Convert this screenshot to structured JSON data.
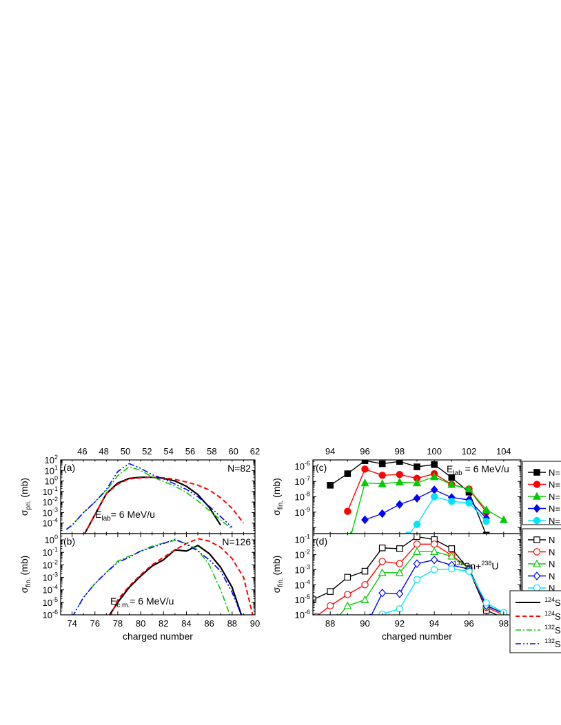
{
  "chart_data": [
    {
      "id": "a",
      "type": "line",
      "scale": "log",
      "panel_label": "(a)",
      "corner_label": "N=82",
      "energy_label": {
        "base": "E",
        "sub": "lab",
        "rest": "= 6 MeV/u"
      },
      "ylabel": {
        "base": "σ",
        "sub": "pri.",
        "rest": " (mb)"
      },
      "xlim": [
        73,
        90
      ],
      "ylim_exp": [
        -5,
        2
      ],
      "y_ticks_exp": [
        -4,
        -3,
        -2,
        -1,
        0,
        1,
        2
      ],
      "top_axis": {
        "xlim": [
          44,
          62
        ],
        "ticks": [
          46,
          48,
          50,
          52,
          54,
          56,
          58,
          60,
          62
        ]
      },
      "series": [
        {
          "color": "#000000",
          "dash": "",
          "width": 2.2,
          "x": [
            75,
            76,
            77,
            78,
            79,
            80,
            81,
            82,
            83,
            84,
            85,
            86,
            87
          ],
          "y_exp": [
            -5.2,
            -3.2,
            -1.2,
            -0.2,
            0.25,
            0.35,
            0.35,
            0.25,
            0.0,
            -0.5,
            -1.3,
            -2.5,
            -4.2
          ]
        },
        {
          "color": "#ff0000",
          "dash": "7,4",
          "width": 2,
          "x": [
            75,
            76,
            77,
            78,
            79,
            80,
            81,
            82,
            83,
            84,
            85,
            86,
            87,
            88,
            89
          ],
          "y_exp": [
            -5.2,
            -3.2,
            -1.2,
            -0.3,
            0.2,
            0.3,
            0.35,
            0.3,
            0.15,
            -0.1,
            -0.4,
            -0.85,
            -1.6,
            -2.6,
            -4.0
          ]
        },
        {
          "color": "#00cc00",
          "dash": "9,3,2,3",
          "width": 1.6,
          "x": [
            73.5,
            74,
            75,
            76,
            77,
            78,
            79,
            80,
            81,
            82,
            83,
            84,
            85,
            86,
            87,
            88
          ],
          "y_exp": [
            -4.6,
            -4.2,
            -3.0,
            -2.0,
            -0.9,
            0.5,
            1.35,
            1.0,
            0.4,
            -0.05,
            -0.5,
            -1.1,
            -1.9,
            -2.8,
            -3.7,
            -4.6
          ]
        },
        {
          "color": "#0000ff",
          "dash": "9,3,2,3,2,3",
          "width": 1.6,
          "x": [
            73.5,
            74,
            75,
            76,
            77,
            78,
            79,
            80,
            81,
            82,
            83,
            84,
            85,
            86,
            87,
            88
          ],
          "y_exp": [
            -4.6,
            -4.2,
            -3.0,
            -2.0,
            -0.8,
            0.9,
            1.65,
            1.2,
            0.6,
            0.2,
            -0.3,
            -0.8,
            -1.5,
            -2.4,
            -3.4,
            -4.4
          ]
        }
      ]
    },
    {
      "id": "b",
      "type": "line",
      "scale": "log",
      "panel_label": "(b)",
      "corner_label": "N=126",
      "energy_label": {
        "base": "E",
        "sub": "c.m.",
        "rest": "= 6 MeV/u"
      },
      "ylabel": {
        "base": "σ",
        "sub": "fin.",
        "rest": " (mb)"
      },
      "xlim": [
        73,
        90
      ],
      "ylim_exp": [
        -6,
        0.5
      ],
      "y_ticks_exp": [
        -6,
        -5,
        -4,
        -3,
        -2,
        -1,
        0
      ],
      "x_ticks": [
        74,
        76,
        78,
        80,
        82,
        84,
        86,
        88,
        90
      ],
      "xlabel": "charged number",
      "series": [
        {
          "color": "#000000",
          "dash": "",
          "width": 2.2,
          "x": [
            77,
            78,
            79,
            80,
            81,
            82,
            83,
            84,
            85,
            86,
            87,
            88,
            88.8
          ],
          "y_exp": [
            -6.4,
            -5.0,
            -3.8,
            -2.9,
            -2.1,
            -1.6,
            -0.8,
            -0.9,
            -0.45,
            -1.1,
            -2.2,
            -3.8,
            -6.0
          ]
        },
        {
          "color": "#ff0000",
          "dash": "7,4",
          "width": 2,
          "x": [
            77.3,
            78,
            79,
            80,
            81,
            82,
            83,
            84,
            85,
            86,
            87,
            88,
            89,
            89.8
          ],
          "y_exp": [
            -6.2,
            -4.8,
            -3.7,
            -2.8,
            -2.0,
            -1.4,
            -0.8,
            -0.3,
            0.1,
            -0.1,
            -0.6,
            -1.5,
            -3.0,
            -6.0
          ]
        },
        {
          "color": "#00cc00",
          "dash": "9,3,2,3",
          "width": 1.6,
          "x": [
            74,
            75,
            76,
            77,
            78,
            79,
            80,
            81,
            82,
            83,
            84,
            85,
            86,
            87,
            87.8
          ],
          "y_exp": [
            -6.2,
            -4.6,
            -3.5,
            -2.6,
            -1.7,
            -1.3,
            -0.9,
            -0.5,
            -0.25,
            -0.05,
            -0.3,
            -0.8,
            -2.0,
            -4.0,
            -6.0
          ]
        },
        {
          "color": "#0000ff",
          "dash": "9,3,2,3,2,3",
          "width": 1.6,
          "x": [
            74,
            75,
            76,
            77,
            78,
            79,
            80,
            81,
            82,
            83,
            84,
            85,
            86,
            87,
            88,
            88.8
          ],
          "y_exp": [
            -6.2,
            -4.6,
            -3.5,
            -2.6,
            -1.8,
            -1.4,
            -0.9,
            -0.6,
            -0.3,
            0.05,
            -0.35,
            -0.9,
            -1.6,
            -2.5,
            -4.2,
            -6.0
          ]
        }
      ]
    },
    {
      "id": "c",
      "type": "line",
      "scale": "log",
      "panel_label": "(c)",
      "energy_label": {
        "base": "E",
        "sub": "lab",
        "rest": " = 6 MeV/u"
      },
      "ylabel": {
        "base": "σ",
        "sub": "fin.",
        "rest": " (mb)"
      },
      "xlim": [
        87,
        99
      ],
      "ylim_exp": [
        -10.4,
        -5.6
      ],
      "y_ticks_exp": [
        -9,
        -8,
        -7,
        -6
      ],
      "top_axis": {
        "xlim": [
          93,
          105
        ],
        "ticks": [
          94,
          96,
          98,
          100,
          102,
          104
        ]
      },
      "legend_entries": [
        "N=",
        "N=",
        "N=",
        "N=",
        "N="
      ],
      "series": [
        {
          "color": "#000000",
          "marker": "square",
          "filled": true,
          "x": [
            88,
            89,
            90,
            91,
            92,
            93,
            94,
            95,
            96,
            97
          ],
          "y_exp": [
            -7.25,
            -6.5,
            -5.65,
            -5.85,
            -5.7,
            -6.05,
            -5.9,
            -6.75,
            -7.7,
            -10.5
          ]
        },
        {
          "color": "#ff0000",
          "marker": "circle",
          "filled": true,
          "x": [
            89,
            90,
            91,
            92,
            93,
            94,
            95,
            96,
            97
          ],
          "y_exp": [
            -8.95,
            -6.2,
            -6.6,
            -6.55,
            -6.8,
            -6.5,
            -7.2,
            -7.5,
            -9.0
          ]
        },
        {
          "color": "#00cc00",
          "marker": "triangle",
          "filled": true,
          "x": [
            89.2,
            90,
            91,
            92,
            93,
            94,
            95,
            96,
            97,
            98
          ],
          "y_exp": [
            -10.5,
            -7.1,
            -7.15,
            -7.05,
            -7.1,
            -6.7,
            -7.2,
            -7.5,
            -8.85,
            -9.5
          ]
        },
        {
          "color": "#0000ff",
          "marker": "diamond",
          "filled": true,
          "x": [
            90,
            91,
            92,
            93,
            94,
            95,
            96,
            97
          ],
          "y_exp": [
            -9.5,
            -9.1,
            -8.5,
            -8.1,
            -7.55,
            -8.05,
            -8.2,
            -9.4
          ]
        },
        {
          "color": "#00e5ff",
          "marker": "circle",
          "filled": true,
          "x": [
            92.5,
            93,
            94,
            95,
            96,
            97
          ],
          "y_exp": [
            -10.5,
            -9.8,
            -8.0,
            -8.3,
            -8.4,
            -9.6
          ]
        }
      ]
    },
    {
      "id": "d",
      "type": "line",
      "scale": "log",
      "panel_label": "(d)",
      "reaction_label": {
        "pre1": "132",
        "base1": "Sn+",
        "pre2": "238",
        "base2": "U"
      },
      "ylabel": {
        "base": "σ",
        "sub": "fin.",
        "rest": " (mb)"
      },
      "xlim": [
        87,
        99
      ],
      "ylim_exp": [
        -6,
        -0.6
      ],
      "y_ticks_exp": [
        -6,
        -5,
        -4,
        -3,
        -2,
        -1
      ],
      "x_ticks": [
        88,
        90,
        92,
        94,
        96,
        98
      ],
      "xlabel": "charged number",
      "legend_entries": [
        "N",
        "N",
        "N",
        "N",
        "N"
      ],
      "series": [
        {
          "color": "#000000",
          "marker": "square",
          "filled": false,
          "x": [
            87,
            88,
            89,
            90,
            91,
            92,
            93,
            94,
            95,
            96,
            97,
            98,
            98.5
          ],
          "y_exp": [
            -5.0,
            -4.45,
            -3.5,
            -3.1,
            -1.55,
            -1.6,
            -0.8,
            -1.0,
            -1.6,
            -3.0,
            -5.7,
            -6.2,
            -6.5
          ]
        },
        {
          "color": "#ff0000",
          "marker": "circle",
          "filled": false,
          "x": [
            87.2,
            88,
            89,
            90,
            91,
            92,
            93,
            94,
            95,
            96,
            97,
            98,
            98.5
          ],
          "y_exp": [
            -6.1,
            -5.4,
            -4.65,
            -4.0,
            -2.45,
            -2.6,
            -1.3,
            -1.3,
            -2.05,
            -2.9,
            -5.5,
            -6.0,
            -6.5
          ]
        },
        {
          "color": "#00cc00",
          "marker": "triangle",
          "filled": false,
          "x": [
            88.4,
            89,
            90,
            91,
            92,
            93,
            94,
            95,
            96,
            97,
            98,
            98.5
          ],
          "y_exp": [
            -6.2,
            -5.4,
            -5.0,
            -3.2,
            -3.2,
            -1.8,
            -1.8,
            -2.1,
            -2.9,
            -5.35,
            -5.9,
            -6.5
          ]
        },
        {
          "color": "#0000ff",
          "marker": "diamond",
          "filled": false,
          "x": [
            90.3,
            91,
            92,
            93,
            94,
            95,
            96,
            97,
            98,
            98.5
          ],
          "y_exp": [
            -6.2,
            -4.55,
            -4.6,
            -2.6,
            -2.35,
            -2.7,
            -2.95,
            -5.4,
            -5.9,
            -6.5
          ]
        },
        {
          "color": "#00e5ff",
          "marker": "circle",
          "filled": false,
          "x": [
            91,
            92,
            93,
            94,
            95,
            96,
            97,
            98,
            98.5
          ],
          "y_exp": [
            -5.95,
            -5.6,
            -3.65,
            -3.0,
            -2.95,
            -3.1,
            -5.2,
            -5.85,
            -6.5
          ]
        }
      ],
      "legend_lines": {
        "entries": [
          {
            "pre": "124",
            "base": "Sn",
            "color": "#000000",
            "dash": "",
            "width": 2
          },
          {
            "pre": "124",
            "base": "Sn",
            "color": "#ff0000",
            "dash": "6,4",
            "width": 2
          },
          {
            "pre": "132",
            "base": "Sn",
            "color": "#00cc00",
            "dash": "8,3,2,3",
            "width": 1.6
          },
          {
            "pre": "132",
            "base": "Sn",
            "color": "#0000ff",
            "dash": "8,3,2,3,2,3",
            "width": 1.6
          }
        ]
      }
    }
  ]
}
